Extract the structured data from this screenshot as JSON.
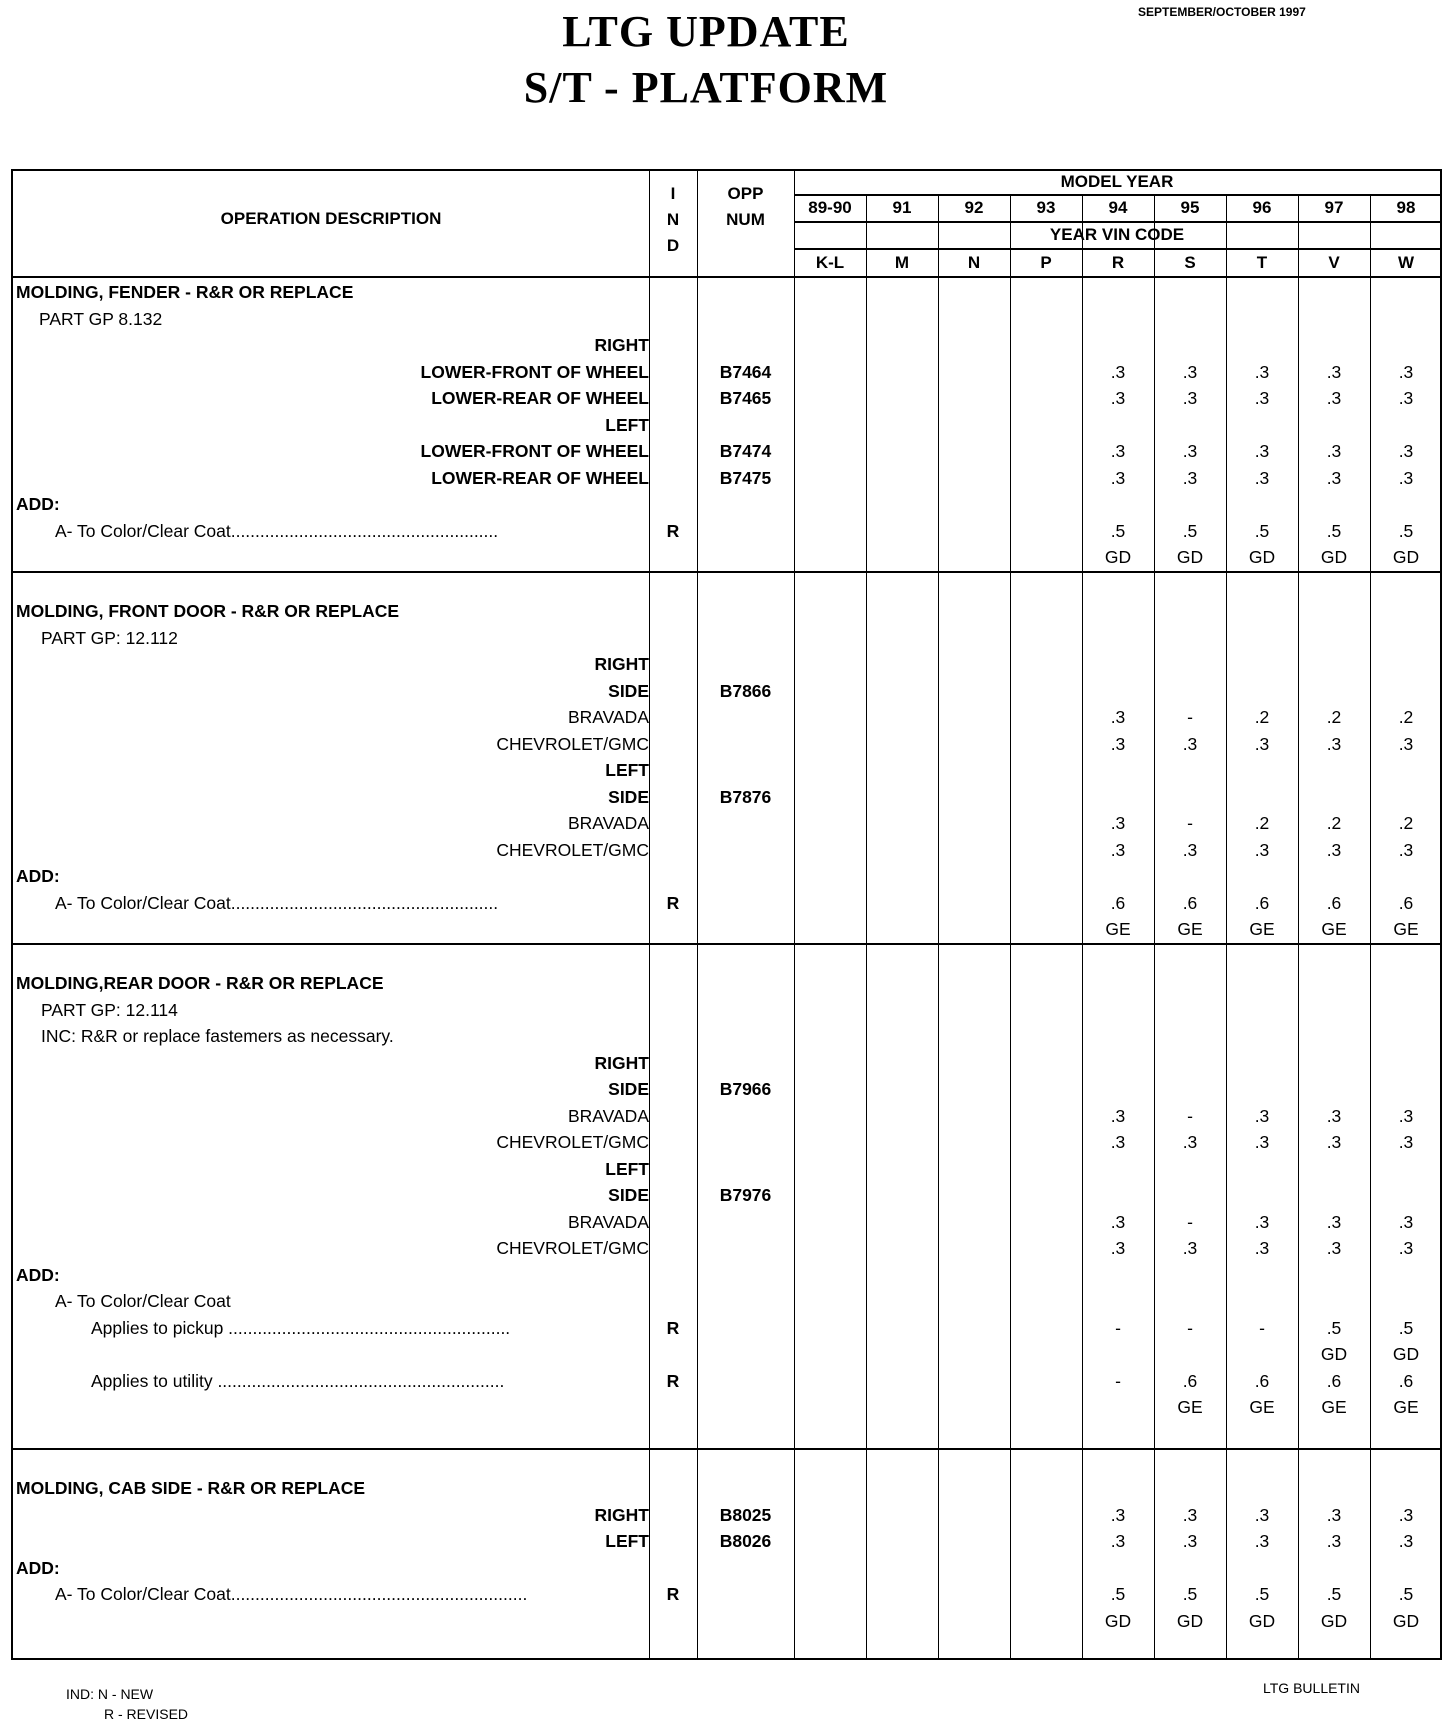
{
  "header": {
    "title_line1": "LTG  UPDATE",
    "title_line2": "S/T - PLATFORM",
    "date": "SEPTEMBER/OCTOBER 1997"
  },
  "table_header": {
    "operation_description": "OPERATION  DESCRIPTION",
    "ind": [
      "I",
      "N",
      "D"
    ],
    "opp": [
      "OPP",
      "NUM"
    ],
    "model_year_label": "MODEL  YEAR",
    "years": [
      "89-90",
      "91",
      "92",
      "93",
      "94",
      "95",
      "96",
      "97",
      "98"
    ],
    "vin_code_label": "YEAR  VIN  CODE",
    "vin_codes": [
      "K-L",
      "M",
      "N",
      "P",
      "R",
      "S",
      "T",
      "V",
      "W"
    ]
  },
  "sections": [
    {
      "rows": [
        {
          "type": "title",
          "desc": "MOLDING, FENDER - R&R OR REPLACE"
        },
        {
          "type": "sub",
          "desc": "PART GP  8.132"
        },
        {
          "type": "right",
          "desc": "RIGHT"
        },
        {
          "type": "right",
          "desc": "LOWER-FRONT OF WHEEL",
          "opp": "B7464",
          "vals": [
            "",
            "",
            "",
            "",
            ".3",
            ".3",
            ".3",
            ".3",
            ".3"
          ]
        },
        {
          "type": "right",
          "desc": "LOWER-REAR OF WHEEL",
          "opp": "B7465",
          "vals": [
            "",
            "",
            "",
            "",
            ".3",
            ".3",
            ".3",
            ".3",
            ".3"
          ]
        },
        {
          "type": "right",
          "desc": "LEFT"
        },
        {
          "type": "right",
          "desc": "LOWER-FRONT OF WHEEL",
          "opp": "B7474",
          "vals": [
            "",
            "",
            "",
            "",
            ".3",
            ".3",
            ".3",
            ".3",
            ".3"
          ]
        },
        {
          "type": "right",
          "desc": "LOWER-REAR OF WHEEL",
          "opp": "B7475",
          "vals": [
            "",
            "",
            "",
            "",
            ".3",
            ".3",
            ".3",
            ".3",
            ".3"
          ]
        },
        {
          "type": "add",
          "desc": "ADD:"
        },
        {
          "type": "item",
          "desc": "A- To Color/Clear Coat.......................................................",
          "ind": "R",
          "vals": [
            "",
            "",
            "",
            "",
            ".5",
            ".5",
            ".5",
            ".5",
            ".5"
          ]
        },
        {
          "type": "blank",
          "desc": "",
          "vals": [
            "",
            "",
            "",
            "",
            "GD",
            "GD",
            "GD",
            "GD",
            "GD"
          ]
        }
      ]
    },
    {
      "rows": [
        {
          "type": "title",
          "desc": "MOLDING, FRONT DOOR - R&R OR REPLACE"
        },
        {
          "type": "sub2",
          "desc": "PART GP: 12.112"
        },
        {
          "type": "right",
          "desc": "RIGHT"
        },
        {
          "type": "right",
          "desc": "SIDE",
          "opp": "B7866"
        },
        {
          "type": "right2",
          "desc": "BRAVADA",
          "vals": [
            "",
            "",
            "",
            "",
            ".3",
            "-",
            ".2",
            ".2",
            ".2"
          ]
        },
        {
          "type": "right2",
          "desc": "CHEVROLET/GMC",
          "vals": [
            "",
            "",
            "",
            "",
            ".3",
            ".3",
            ".3",
            ".3",
            ".3"
          ]
        },
        {
          "type": "right",
          "desc": "LEFT"
        },
        {
          "type": "right",
          "desc": "SIDE",
          "opp": "B7876"
        },
        {
          "type": "right2",
          "desc": "BRAVADA",
          "vals": [
            "",
            "",
            "",
            "",
            ".3",
            "-",
            ".2",
            ".2",
            ".2"
          ]
        },
        {
          "type": "right2",
          "desc": "CHEVROLET/GMC",
          "vals": [
            "",
            "",
            "",
            "",
            ".3",
            ".3",
            ".3",
            ".3",
            ".3"
          ]
        },
        {
          "type": "add",
          "desc": "ADD:"
        },
        {
          "type": "item",
          "desc": "A- To Color/Clear Coat.......................................................",
          "ind": "R",
          "vals": [
            "",
            "",
            "",
            "",
            ".6",
            ".6",
            ".6",
            ".6",
            ".6"
          ]
        },
        {
          "type": "blank",
          "desc": "",
          "vals": [
            "",
            "",
            "",
            "",
            "GE",
            "GE",
            "GE",
            "GE",
            "GE"
          ]
        }
      ]
    },
    {
      "rows": [
        {
          "type": "title",
          "desc": "MOLDING,REAR DOOR - R&R OR REPLACE"
        },
        {
          "type": "sub2",
          "desc": "PART GP: 12.114"
        },
        {
          "type": "sub2",
          "desc": "INC: R&R or replace fastemers as necessary."
        },
        {
          "type": "right",
          "desc": "RIGHT"
        },
        {
          "type": "right",
          "desc": "SIDE",
          "opp": "B7966"
        },
        {
          "type": "right2",
          "desc": "BRAVADA",
          "vals": [
            "",
            "",
            "",
            "",
            ".3",
            "-",
            ".3",
            ".3",
            ".3"
          ]
        },
        {
          "type": "right2",
          "desc": "CHEVROLET/GMC",
          "vals": [
            "",
            "",
            "",
            "",
            ".3",
            ".3",
            ".3",
            ".3",
            ".3"
          ]
        },
        {
          "type": "right",
          "desc": "LEFT"
        },
        {
          "type": "right",
          "desc": "SIDE",
          "opp": "B7976"
        },
        {
          "type": "right2",
          "desc": "BRAVADA",
          "vals": [
            "",
            "",
            "",
            "",
            ".3",
            "-",
            ".3",
            ".3",
            ".3"
          ]
        },
        {
          "type": "right2",
          "desc": "CHEVROLET/GMC",
          "vals": [
            "",
            "",
            "",
            "",
            ".3",
            ".3",
            ".3",
            ".3",
            ".3"
          ]
        },
        {
          "type": "add",
          "desc": "ADD:"
        },
        {
          "type": "item",
          "desc": "A- To Color/Clear Coat"
        },
        {
          "type": "item2",
          "desc": "Applies to pickup ..........................................................",
          "ind": "R",
          "vals": [
            "",
            "",
            "",
            "",
            "-",
            "-",
            "-",
            ".5",
            ".5"
          ]
        },
        {
          "type": "blank",
          "desc": "",
          "vals": [
            "",
            "",
            "",
            "",
            "",
            "",
            "",
            "GD",
            "GD"
          ]
        },
        {
          "type": "item2",
          "desc": "Applies to utility ...........................................................",
          "ind": "R",
          "vals": [
            "",
            "",
            "",
            "",
            "-",
            ".6",
            ".6",
            ".6",
            ".6"
          ]
        },
        {
          "type": "blank",
          "desc": "",
          "vals": [
            "",
            "",
            "",
            "",
            "",
            "GE",
            "GE",
            "GE",
            "GE"
          ]
        }
      ]
    },
    {
      "rows": [
        {
          "type": "title",
          "desc": "MOLDING, CAB SIDE - R&R OR REPLACE"
        },
        {
          "type": "right",
          "desc": "RIGHT",
          "opp": "B8025",
          "vals": [
            "",
            "",
            "",
            "",
            ".3",
            ".3",
            ".3",
            ".3",
            ".3"
          ]
        },
        {
          "type": "right",
          "desc": "LEFT",
          "opp": "B8026",
          "vals": [
            "",
            "",
            "",
            "",
            ".3",
            ".3",
            ".3",
            ".3",
            ".3"
          ]
        },
        {
          "type": "add",
          "desc": "ADD:"
        },
        {
          "type": "item",
          "desc": "A- To Color/Clear Coat.............................................................",
          "ind": "R",
          "vals": [
            "",
            "",
            "",
            "",
            ".5",
            ".5",
            ".5",
            ".5",
            ".5"
          ]
        },
        {
          "type": "blank",
          "desc": "",
          "vals": [
            "",
            "",
            "",
            "",
            "GD",
            "GD",
            "GD",
            "GD",
            "GD"
          ]
        }
      ]
    }
  ],
  "footer": {
    "legend_new": "IND: N - NEW",
    "legend_revised": "R - REVISED",
    "bulletin": "LTG BULLETIN"
  }
}
